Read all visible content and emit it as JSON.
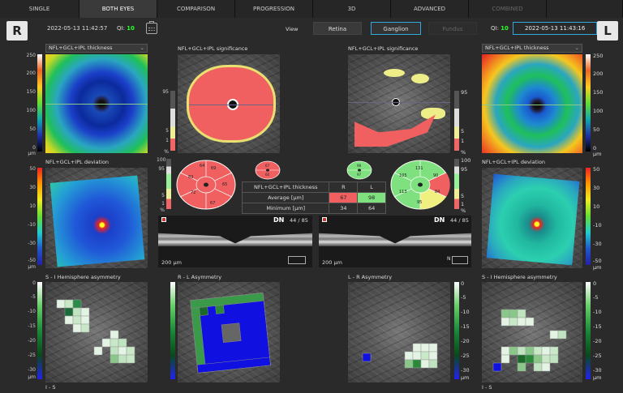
{
  "tabs": [
    {
      "label": "SINGLE"
    },
    {
      "label": "BOTH EYES"
    },
    {
      "label": "COMPARISON"
    },
    {
      "label": "PROGRESSION"
    },
    {
      "label": "3D"
    },
    {
      "label": "ADVANCED"
    },
    {
      "label": "COMBINED"
    }
  ],
  "right_eye": {
    "label": "R",
    "datetime": "2022-05-13 11:42:57",
    "qi_label": "QI:",
    "qi_value": "10"
  },
  "left_eye": {
    "label": "L",
    "datetime": "2022-05-13 11:43:16",
    "qi_label": "QI:",
    "qi_value": "10"
  },
  "view": {
    "label": "View",
    "options": [
      "Retina",
      "Ganglion",
      "Fundus"
    ],
    "selected": "Ganglion"
  },
  "panels": {
    "thickness_title": "NFL+GCL+IPL thickness",
    "significance_title": "NFL+GCL+IPL significance",
    "deviation_title": "NFL+GCL+IPL deviation",
    "si_title": "S - I  Hemisphere asymmetry",
    "rl_title": "R - L  Asymmetry",
    "lr_title": "L - R  Asymmetry",
    "is_label": "I - S"
  },
  "thickness_scale": [
    "250",
    "200",
    "150",
    "100",
    "50",
    "0",
    "µm"
  ],
  "significance_scale": [
    "95",
    "5",
    "1",
    "%"
  ],
  "sector_scale": [
    "100",
    "95",
    "5",
    "1",
    "%"
  ],
  "deviation_scale": [
    "50",
    "30",
    "10",
    "-10",
    "-30",
    "-50",
    "µm"
  ],
  "asym_scale": [
    "0",
    "-5",
    "-10",
    "-15",
    "-20",
    "-25",
    "-30",
    "µm"
  ],
  "sectors_R": {
    "values": [
      "69",
      "65",
      "67",
      "72",
      "83",
      "64"
    ],
    "small": [
      "67",
      "60"
    ]
  },
  "sectors_L": {
    "values": [
      "131",
      "90",
      "84",
      "95",
      "113",
      "105"
    ],
    "small": [
      "98",
      "97"
    ]
  },
  "table": {
    "title": "NFL+GCL+IPL thickness",
    "col_r": "R",
    "col_l": "L",
    "rows": [
      {
        "label": "Average [µm]",
        "r": "67",
        "l": "98"
      },
      {
        "label": "Minimum [µm]",
        "r": "34",
        "l": "64"
      }
    ]
  },
  "oct_R": {
    "label": "DN",
    "slice": "44 / 85",
    "scalebar": "200 µm"
  },
  "oct_L": {
    "label": "DN",
    "slice": "44 / 85",
    "scalebar": "200 µm",
    "corner": "N"
  }
}
